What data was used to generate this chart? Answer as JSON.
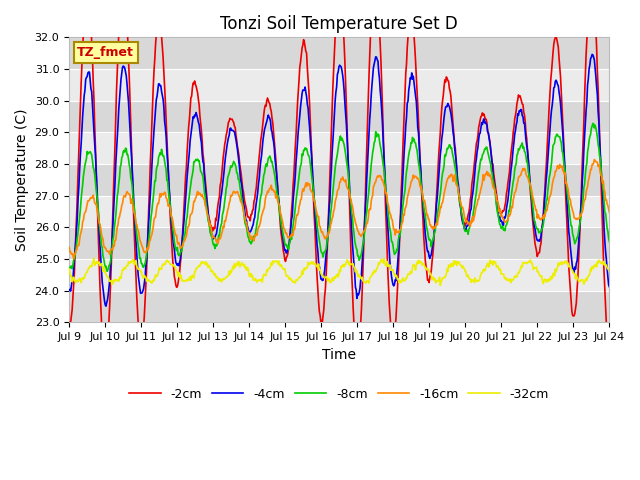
{
  "title": "Tonzi Soil Temperature Set D",
  "xlabel": "Time",
  "ylabel": "Soil Temperature (C)",
  "ylim": [
    23.0,
    32.0
  ],
  "yticks": [
    23.0,
    24.0,
    25.0,
    26.0,
    27.0,
    28.0,
    29.0,
    30.0,
    31.0,
    32.0
  ],
  "background_color": "#ffffff",
  "plot_bg_light": "#ebebeb",
  "plot_bg_dark": "#d8d8d8",
  "legend_label": "TZ_fmet",
  "series": [
    {
      "label": "-2cm",
      "color": "#ee0000",
      "amplitude": 3.8,
      "phase": 0.0,
      "baseline": 27.8,
      "amp_var": 0.6,
      "phase_drift": 0.02
    },
    {
      "label": "-4cm",
      "color": "#0000ee",
      "amplitude": 2.7,
      "phase": 0.12,
      "baseline": 27.3,
      "amp_var": 0.4,
      "phase_drift": 0.04
    },
    {
      "label": "-8cm",
      "color": "#00cc00",
      "amplitude": 1.6,
      "phase": 0.35,
      "baseline": 26.5,
      "amp_var": 0.2,
      "phase_drift": 0.06
    },
    {
      "label": "-16cm",
      "color": "#ff8800",
      "amplitude": 0.85,
      "phase": 0.7,
      "baseline": 26.0,
      "amp_var": 0.1,
      "phase_drift": 0.08
    },
    {
      "label": "-32cm",
      "color": "#eeee00",
      "amplitude": 0.3,
      "phase": 1.5,
      "baseline": 24.6,
      "amp_var": 0.05,
      "phase_drift": 0.0
    }
  ],
  "x_start_day": 9,
  "x_end_day": 24,
  "xtick_days": [
    9,
    10,
    11,
    12,
    13,
    14,
    15,
    16,
    17,
    18,
    19,
    20,
    21,
    22,
    23,
    24
  ],
  "xtick_labels": [
    "Jul 9",
    "Jul 10",
    "Jul 11",
    "Jul 12",
    "Jul 13",
    "Jul 14",
    "Jul 15",
    "Jul 16",
    "Jul 17",
    "Jul 18",
    "Jul 19",
    "Jul 20",
    "Jul 21",
    "Jul 22",
    "Jul 23",
    "Jul 24"
  ],
  "n_points": 720,
  "period_days": 1.0,
  "title_fontsize": 12,
  "axis_label_fontsize": 10,
  "tick_fontsize": 8,
  "legend_fontsize": 9,
  "linewidth": 1.2
}
